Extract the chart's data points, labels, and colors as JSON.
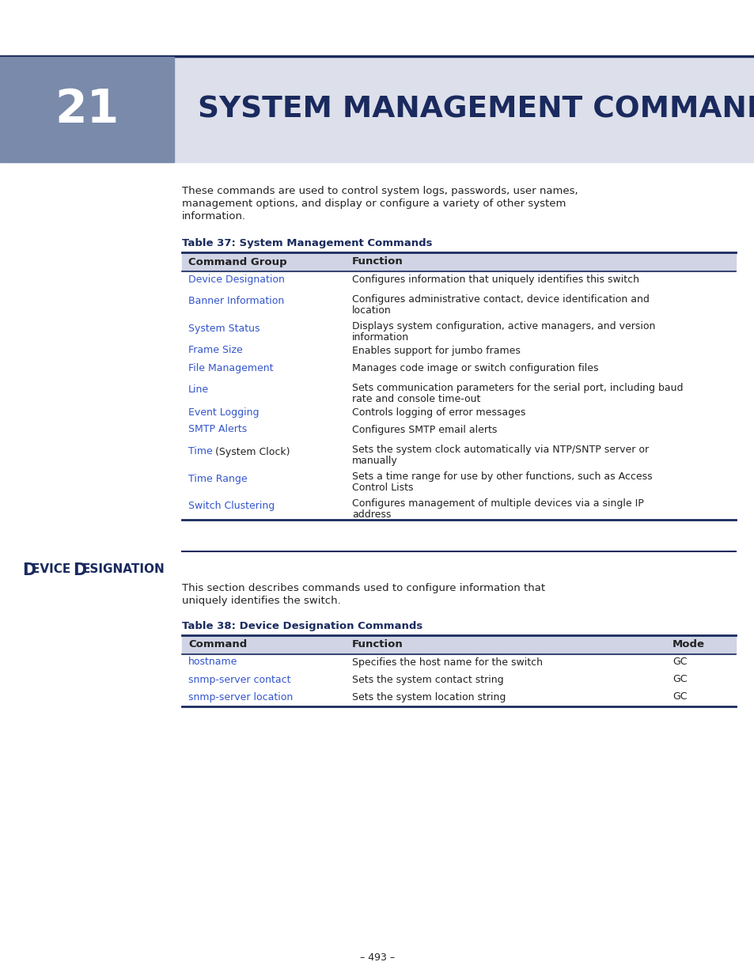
{
  "page_bg": "#ffffff",
  "header_bar_color": "#dde0ea",
  "chapter_box_color": "#7a8aaa",
  "chapter_number": "21",
  "intro_text_line1": "These commands are used to control system logs, passwords, user names,",
  "intro_text_line2": "management options, and display or configure a variety of other system",
  "intro_text_line3": "information.",
  "table37_title": "Table 37: System Management Commands",
  "table37_header": [
    "Command Group",
    "Function"
  ],
  "table37_rows": [
    [
      "Device Designation",
      "Configures information that uniquely identifies this switch",
      false
    ],
    [
      "Banner Information",
      "Configures administrative contact, device identification and\nlocation",
      false
    ],
    [
      "System Status",
      "Displays system configuration, active managers, and version\ninformation",
      false
    ],
    [
      "Frame Size",
      "Enables support for jumbo frames",
      false
    ],
    [
      "File Management",
      "Manages code image or switch configuration files",
      false
    ],
    [
      "Line",
      "Sets communication parameters for the serial port, including baud\nrate and console time-out",
      false
    ],
    [
      "Event Logging",
      "Controls logging of error messages",
      false
    ],
    [
      "SMTP Alerts",
      "Configures SMTP email alerts",
      false
    ],
    [
      "Time (System Clock)",
      "Sets the system clock automatically via NTP/SNTP server or\nmanually",
      true
    ],
    [
      "Time Range",
      "Sets a time range for use by other functions, such as Access\nControl Lists",
      false
    ],
    [
      "Switch Clustering",
      "Configures management of multiple devices via a single IP\naddress",
      false
    ]
  ],
  "section2_title_big": "D",
  "section2_title_small": "EVICE ",
  "section2_title_big2": "D",
  "section2_title_small2": "ESIGNATION",
  "section2_intro_line1": "This section describes commands used to configure information that",
  "section2_intro_line2": "uniquely identifies the switch.",
  "table38_title": "Table 38: Device Designation Commands",
  "table38_header": [
    "Command",
    "Function",
    "Mode"
  ],
  "table38_rows": [
    [
      "hostname",
      "Specifies the host name for the switch",
      "GC"
    ],
    [
      "snmp-server contact",
      "Sets the system contact string",
      "GC"
    ],
    [
      "snmp-server location",
      "Sets the system location string",
      "GC"
    ]
  ],
  "link_color": "#3355cc",
  "dark_navy": "#1a2a5e",
  "table_header_bg": "#d0d4e4",
  "table_line_color": "#1a2a5e",
  "text_color": "#222222",
  "page_number": "– 493 –"
}
